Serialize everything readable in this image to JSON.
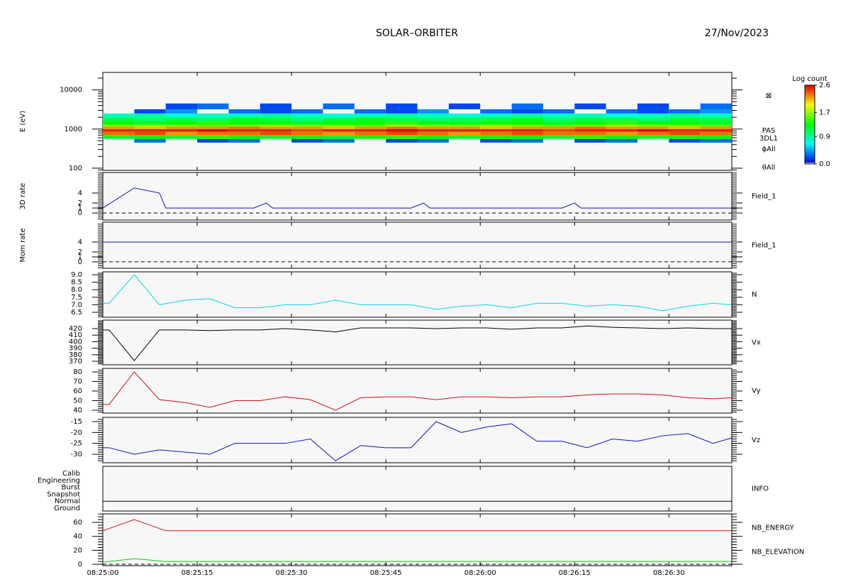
{
  "header": {
    "title": "SOLAR–ORBITER",
    "date": "27/Nov/2023"
  },
  "chart_data": [
    {
      "type": "spectrogram",
      "ylabel": "E (eV)",
      "log_y": true,
      "ylim": [
        88,
        28000
      ],
      "yticks": [
        100,
        1000,
        10000
      ],
      "xlim": [
        "08:25:00",
        "08:26:40"
      ],
      "xticks": [
        "08:25:00",
        "08:25:15",
        "08:25:30",
        "08:25:45",
        "08:26:00",
        "08:26:15",
        "08:26:30"
      ],
      "side_labels": [
        "⊠",
        "PAS",
        "3DL1",
        "ϕAll",
        "θAll"
      ],
      "x": [
        "08:25:00",
        "08:25:05",
        "08:25:10",
        "08:25:15",
        "08:25:20",
        "08:25:25",
        "08:25:30",
        "08:25:35",
        "08:25:40",
        "08:25:45",
        "08:25:50",
        "08:25:55",
        "08:26:00",
        "08:26:05",
        "08:26:10",
        "08:26:15",
        "08:26:20",
        "08:26:25",
        "08:26:30",
        "08:26:35",
        "08:26:40"
      ],
      "bins": [
        450,
        560,
        700,
        850,
        1000,
        1150,
        1300,
        1600,
        2000,
        2500,
        3200,
        4500
      ],
      "values": [
        [
          null,
          1.2,
          2.3,
          2.5,
          2.2,
          1.6,
          1.3,
          1.1,
          0.8,
          null,
          null
        ],
        [
          0.3,
          1.3,
          2.4,
          2.5,
          2.1,
          1.7,
          1.2,
          1.0,
          0.9,
          0.2,
          null
        ],
        [
          null,
          1.2,
          2.2,
          2.5,
          2.2,
          1.6,
          1.3,
          1.1,
          0.7,
          0.4,
          0.2
        ],
        [
          0.2,
          1.4,
          2.3,
          2.6,
          2.2,
          1.5,
          1.4,
          1.0,
          0.8,
          null,
          0.3
        ],
        [
          0.3,
          1.3,
          2.3,
          2.5,
          2.3,
          1.6,
          1.3,
          1.2,
          0.8,
          0.3,
          null
        ],
        [
          null,
          1.2,
          2.4,
          2.5,
          2.2,
          1.7,
          1.3,
          1.1,
          0.9,
          0.2,
          0.2
        ],
        [
          0.2,
          1.3,
          2.3,
          2.4,
          2.2,
          1.6,
          1.2,
          1.0,
          0.8,
          0.3,
          null
        ],
        [
          0.3,
          1.2,
          2.2,
          2.5,
          2.1,
          1.6,
          1.3,
          1.1,
          0.7,
          null,
          0.3
        ],
        [
          null,
          1.3,
          2.3,
          2.5,
          2.2,
          1.5,
          1.3,
          1.2,
          0.8,
          0.3,
          null
        ],
        [
          0.2,
          1.4,
          2.4,
          2.6,
          2.3,
          1.7,
          1.4,
          1.1,
          0.9,
          0.2,
          0.2
        ],
        [
          0.3,
          1.3,
          2.3,
          2.5,
          2.2,
          1.6,
          1.3,
          1.0,
          0.8,
          0.4,
          null
        ],
        [
          null,
          1.2,
          2.2,
          2.5,
          2.2,
          1.6,
          1.2,
          1.1,
          0.7,
          null,
          0.2
        ],
        [
          0.2,
          1.3,
          2.3,
          2.5,
          2.1,
          1.7,
          1.3,
          1.1,
          0.8,
          0.3,
          null
        ],
        [
          0.3,
          1.3,
          2.4,
          2.5,
          2.2,
          1.6,
          1.3,
          1.2,
          0.9,
          0.2,
          0.3
        ],
        [
          null,
          1.2,
          2.3,
          2.4,
          2.2,
          1.5,
          1.2,
          1.0,
          0.8,
          0.3,
          null
        ],
        [
          0.2,
          1.4,
          2.3,
          2.5,
          2.3,
          1.6,
          1.3,
          1.1,
          0.8,
          null,
          0.2
        ],
        [
          0.3,
          1.3,
          2.2,
          2.5,
          2.2,
          1.7,
          1.4,
          1.1,
          0.7,
          0.3,
          null
        ],
        [
          null,
          1.2,
          2.3,
          2.6,
          2.2,
          1.6,
          1.3,
          1.0,
          0.8,
          0.2,
          0.2
        ],
        [
          0.2,
          1.3,
          2.4,
          2.5,
          2.1,
          1.6,
          1.3,
          1.1,
          0.9,
          0.3,
          null
        ],
        [
          0.3,
          1.3,
          2.3,
          2.5,
          2.2,
          1.5,
          1.2,
          1.1,
          0.8,
          0.4,
          0.3
        ]
      ],
      "colorbar": {
        "title": "Log count",
        "zlim": [
          0,
          2.6
        ],
        "zticks": [
          {
            "value": 0,
            "label": "0.0"
          },
          0.9,
          1.7,
          2.6
        ]
      }
    },
    {
      "type": "line",
      "ylabel": "3D rate",
      "ylim": [
        -1.4,
        8.1
      ],
      "yticks": [
        0,
        1,
        2,
        4
      ],
      "zero_line": true,
      "xlim": [
        "08:25:00",
        "08:26:40"
      ],
      "xticks": [
        "08:25:00",
        "08:25:15",
        "08:25:30",
        "08:25:45",
        "08:26:00",
        "08:26:15",
        "08:26:30"
      ],
      "x": [
        "08:25:00",
        "08:25:05",
        "08:25:09",
        "08:25:10",
        "08:25:24",
        "08:25:26",
        "08:25:27",
        "08:25:49",
        "08:25:51",
        "08:25:52",
        "08:26:13",
        "08:26:15",
        "08:26:16",
        "08:26:40"
      ],
      "series": [
        {
          "name": "Field_1",
          "color": "#1010c0",
          "values": [
            1,
            5,
            4,
            1,
            1,
            2,
            1,
            1,
            2,
            1,
            1,
            2,
            1,
            1
          ]
        }
      ]
    },
    {
      "type": "line",
      "ylabel": "Mom rate",
      "ylim": [
        -1.3,
        8
      ],
      "yticks": [
        0,
        1,
        2,
        4
      ],
      "zero_line": true,
      "xlim": [
        "08:25:00",
        "08:26:40"
      ],
      "xticks": [
        "08:25:00",
        "08:25:15",
        "08:25:30",
        "08:25:45",
        "08:26:00",
        "08:26:15",
        "08:26:30"
      ],
      "x": [
        "08:25:00",
        "08:26:40"
      ],
      "series": [
        {
          "name": "Field_1",
          "color": "#1010c0",
          "values": [
            4,
            4
          ]
        }
      ]
    },
    {
      "type": "line",
      "ylim": [
        6.17,
        9.19
      ],
      "yticks": [
        {
          "value": 6.5,
          "label": "6.5"
        },
        {
          "value": 7,
          "label": "7.0"
        },
        7.5,
        {
          "value": 8,
          "label": "8.0"
        },
        8.5,
        {
          "value": 9,
          "label": "9.0"
        }
      ],
      "xlim": [
        "08:25:00",
        "08:26:40"
      ],
      "xticks": [
        "08:25:00",
        "08:25:15",
        "08:25:30",
        "08:25:45",
        "08:26:00",
        "08:26:15",
        "08:26:30"
      ],
      "x": [
        "08:25:00",
        "08:25:01",
        "08:25:05",
        "08:25:09",
        "08:25:13",
        "08:25:17",
        "08:25:21",
        "08:25:25",
        "08:25:29",
        "08:25:33",
        "08:25:37",
        "08:25:41",
        "08:25:45",
        "08:25:49",
        "08:25:53",
        "08:25:57",
        "08:26:01",
        "08:26:05",
        "08:26:09",
        "08:26:13",
        "08:26:17",
        "08:26:21",
        "08:26:25",
        "08:26:29",
        "08:26:33",
        "08:26:37",
        "08:26:40"
      ],
      "series": [
        {
          "name": "N",
          "color": "#00d8e8",
          "values": [
            7.1,
            7.1,
            9.0,
            7.0,
            7.3,
            7.4,
            6.8,
            6.8,
            7.0,
            7.0,
            7.3,
            7.0,
            7.0,
            7.0,
            6.7,
            6.9,
            7.0,
            6.8,
            7.1,
            7.1,
            6.9,
            7.0,
            6.9,
            6.6,
            6.9,
            7.1,
            7.0
          ]
        }
      ]
    },
    {
      "type": "line",
      "ylim": [
        364.6,
        433
      ],
      "yticks": [
        370,
        380,
        390,
        400,
        410,
        420
      ],
      "xlim": [
        "08:25:00",
        "08:26:40"
      ],
      "xticks": [
        "08:25:00",
        "08:25:15",
        "08:25:30",
        "08:25:45",
        "08:26:00",
        "08:26:15",
        "08:26:30"
      ],
      "x": [
        "08:25:00",
        "08:25:01",
        "08:25:05",
        "08:25:09",
        "08:25:13",
        "08:25:17",
        "08:25:21",
        "08:25:25",
        "08:25:29",
        "08:25:33",
        "08:25:37",
        "08:25:41",
        "08:25:45",
        "08:25:49",
        "08:25:53",
        "08:25:57",
        "08:26:01",
        "08:26:05",
        "08:26:09",
        "08:26:13",
        "08:26:17",
        "08:26:21",
        "08:26:25",
        "08:26:29",
        "08:26:33",
        "08:26:37",
        "08:26:40"
      ],
      "series": [
        {
          "name": "Vx",
          "color": "#000000",
          "values": [
            418,
            418,
            371,
            418,
            418,
            417,
            418,
            418,
            420,
            418,
            415,
            421,
            421,
            421,
            420,
            421,
            421,
            419,
            421,
            421,
            424,
            422,
            421,
            420,
            421,
            420,
            420
          ]
        }
      ]
    },
    {
      "type": "line",
      "ylim": [
        37,
        83.7
      ],
      "yticks": [
        40,
        50,
        60,
        70,
        80
      ],
      "xlim": [
        "08:25:00",
        "08:26:40"
      ],
      "xticks": [
        "08:25:00",
        "08:25:15",
        "08:25:30",
        "08:25:45",
        "08:26:00",
        "08:26:15",
        "08:26:30"
      ],
      "x": [
        "08:25:00",
        "08:25:01",
        "08:25:05",
        "08:25:09",
        "08:25:13",
        "08:25:17",
        "08:25:21",
        "08:25:25",
        "08:25:29",
        "08:25:33",
        "08:25:37",
        "08:25:41",
        "08:25:45",
        "08:25:49",
        "08:25:53",
        "08:25:57",
        "08:26:01",
        "08:26:05",
        "08:26:09",
        "08:26:13",
        "08:26:17",
        "08:26:21",
        "08:26:25",
        "08:26:29",
        "08:26:33",
        "08:26:37",
        "08:26:40"
      ],
      "series": [
        {
          "name": "Vy",
          "color": "#d01010",
          "values": [
            46,
            46,
            80,
            51,
            48,
            43,
            50,
            50,
            54,
            51,
            40,
            53,
            54,
            54,
            51,
            54,
            54,
            53,
            54,
            54,
            56,
            57,
            57,
            56,
            53,
            52,
            53
          ]
        }
      ]
    },
    {
      "type": "line",
      "ylim": [
        -33.9,
        -13.05
      ],
      "yticks": [
        -30,
        -25,
        -20,
        -15
      ],
      "xlim": [
        "08:25:00",
        "08:26:40"
      ],
      "xticks": [
        "08:25:00",
        "08:25:15",
        "08:25:30",
        "08:25:45",
        "08:26:00",
        "08:26:15",
        "08:26:30"
      ],
      "x": [
        "08:25:00",
        "08:25:01",
        "08:25:05",
        "08:25:09",
        "08:25:13",
        "08:25:17",
        "08:25:21",
        "08:25:25",
        "08:25:29",
        "08:25:33",
        "08:25:37",
        "08:25:41",
        "08:25:45",
        "08:25:49",
        "08:25:53",
        "08:25:57",
        "08:26:01",
        "08:26:05",
        "08:26:09",
        "08:26:13",
        "08:26:17",
        "08:26:21",
        "08:26:25",
        "08:26:29",
        "08:26:33",
        "08:26:37",
        "08:26:40"
      ],
      "series": [
        {
          "name": "Vz",
          "color": "#1010c0",
          "values": [
            -27,
            -27,
            -30,
            -28,
            -29,
            -30,
            -25,
            -25,
            -25,
            -23,
            -33,
            -26,
            -27,
            -27,
            -15,
            -20,
            -17.5,
            -16,
            -24,
            -24,
            -27,
            -23,
            -24,
            -21.5,
            -20.5,
            -25,
            -22.5
          ]
        }
      ]
    },
    {
      "type": "state",
      "categories": [
        "Calib",
        "Engineering",
        "Burst",
        "Snapshot",
        "Normal",
        "Ground"
      ],
      "xlim": [
        "08:25:00",
        "08:26:40"
      ],
      "xticks": [
        "08:25:00",
        "08:25:15",
        "08:25:30",
        "08:25:45",
        "08:26:00",
        "08:26:15",
        "08:26:30"
      ],
      "x": [
        "08:25:00",
        "08:26:40"
      ],
      "series": [
        {
          "name": "INFO",
          "color": "#000000",
          "values": [
            "Normal",
            "Normal"
          ]
        }
      ]
    },
    {
      "type": "line",
      "ylim": [
        -2,
        72.2
      ],
      "yticks": [
        0,
        20,
        40,
        60
      ],
      "zero_line": true,
      "xlim": [
        "08:25:00",
        "08:26:40"
      ],
      "xticks": [
        "08:25:00",
        "08:25:15",
        "08:25:30",
        "08:25:45",
        "08:26:00",
        "08:26:15",
        "08:26:30"
      ],
      "x": [
        "08:25:00",
        "08:25:05",
        "08:25:10",
        "08:26:40"
      ],
      "series": [
        {
          "name": "NB_ENERGY",
          "color": "#d01010",
          "values": [
            48,
            64,
            48,
            48
          ]
        },
        {
          "name": "NB_ELEVATION",
          "color": "#10c010",
          "values": [
            3,
            8,
            4,
            4
          ]
        }
      ]
    }
  ]
}
